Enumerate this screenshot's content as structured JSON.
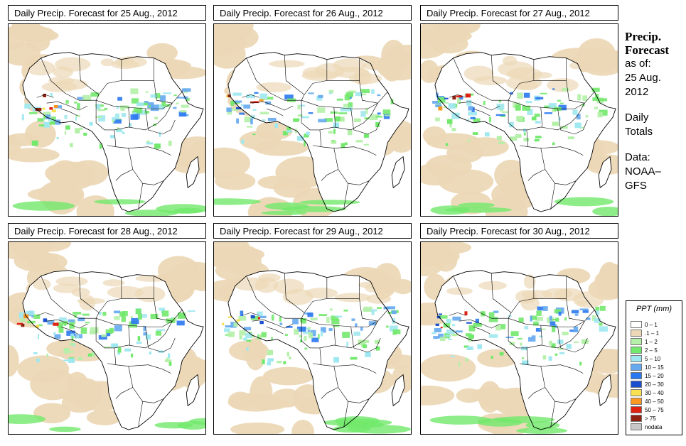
{
  "panels": [
    {
      "title": "Daily Precip. Forecast for  25 Aug., 2012"
    },
    {
      "title": "Daily Precip. Forecast for  26 Aug., 2012"
    },
    {
      "title": "Daily Precip. Forecast for  27 Aug., 2012"
    },
    {
      "title": "Daily Precip. Forecast for  28 Aug., 2012"
    },
    {
      "title": "Daily Precip. Forecast for  29 Aug., 2012"
    },
    {
      "title": "Daily Precip. Forecast for  30 Aug., 2012"
    }
  ],
  "side": {
    "heading1": "Precip.",
    "heading2": "Forecast",
    "asof": "as of:",
    "date1": "25 Aug.",
    "date2": "2012",
    "daily1": "Daily",
    "daily2": "Totals",
    "data1": "Data:",
    "data2": "NOAA–",
    "data3": "GFS"
  },
  "legend": {
    "title": "PPT (mm)",
    "items": [
      {
        "label": "0 – 1",
        "color": "#ffffff"
      },
      {
        "label": ".1 – 1",
        "color": "#ecd8b6"
      },
      {
        "label": "1 – 2",
        "color": "#b4f0a8"
      },
      {
        "label": "2 – 5",
        "color": "#72e86c"
      },
      {
        "label": "5 – 10",
        "color": "#a0e8f0"
      },
      {
        "label": "10 – 15",
        "color": "#64a8f0"
      },
      {
        "label": "15 – 20",
        "color": "#2a78f0"
      },
      {
        "label": "20 – 30",
        "color": "#1a50d0"
      },
      {
        "label": "30 – 40",
        "color": "#f8e050"
      },
      {
        "label": "40 – 50",
        "color": "#f89820"
      },
      {
        "label": "50 – 75",
        "color": "#e02010"
      },
      {
        "label": "> 75",
        "color": "#902010"
      },
      {
        "label": "nodata",
        "color": "#c8c8c8"
      }
    ]
  }
}
